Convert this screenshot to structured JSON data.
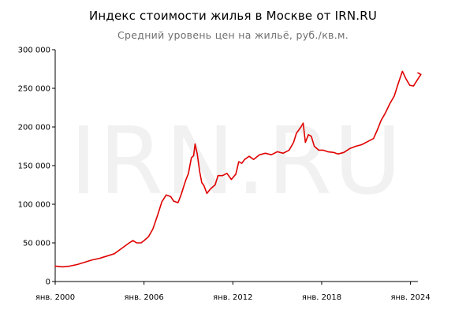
{
  "chart_data": {
    "type": "line",
    "title": "Индекс стоимости жилья в Москве от IRN.RU",
    "subtitle": "Средний уровень цен на жильё, руб./кв.м.",
    "watermark": "IRN.RU",
    "xlabel": "",
    "ylabel": "",
    "xlim": [
      2000.0,
      2024.5
    ],
    "ylim": [
      0,
      300000
    ],
    "x_ticks": [
      {
        "x": 2000,
        "label": "янв. 2000"
      },
      {
        "x": 2006,
        "label": "янв. 2006"
      },
      {
        "x": 2012,
        "label": "янв. 2012"
      },
      {
        "x": 2018,
        "label": "янв. 2018"
      },
      {
        "x": 2024,
        "label": "янв. 2024"
      }
    ],
    "y_ticks": [
      {
        "y": 0,
        "label": "0"
      },
      {
        "y": 50000,
        "label": "50 000"
      },
      {
        "y": 100000,
        "label": "100 000"
      },
      {
        "y": 150000,
        "label": "150 000"
      },
      {
        "y": 200000,
        "label": "200 000"
      },
      {
        "y": 250000,
        "label": "250 000"
      },
      {
        "y": 300000,
        "label": "300 000"
      }
    ],
    "grid": false,
    "line_color": "#e00000",
    "series": [
      {
        "points": [
          [
            2000.0,
            20000
          ],
          [
            2000.5,
            19000
          ],
          [
            2001.0,
            20000
          ],
          [
            2001.5,
            22000
          ],
          [
            2002.0,
            25000
          ],
          [
            2002.5,
            28000
          ],
          [
            2003.0,
            30000
          ],
          [
            2003.5,
            33000
          ],
          [
            2004.0,
            36000
          ],
          [
            2004.5,
            43000
          ],
          [
            2005.0,
            50000
          ],
          [
            2005.25,
            53000
          ],
          [
            2005.5,
            50000
          ],
          [
            2005.8,
            50000
          ],
          [
            2006.0,
            53000
          ],
          [
            2006.3,
            58000
          ],
          [
            2006.6,
            68000
          ],
          [
            2006.9,
            85000
          ],
          [
            2007.2,
            103000
          ],
          [
            2007.5,
            112000
          ],
          [
            2007.8,
            110000
          ],
          [
            2008.0,
            104000
          ],
          [
            2008.3,
            102000
          ],
          [
            2008.5,
            112000
          ],
          [
            2008.8,
            130000
          ],
          [
            2009.0,
            140000
          ],
          [
            2009.2,
            160000
          ],
          [
            2009.35,
            163000
          ],
          [
            2009.45,
            178000
          ],
          [
            2009.6,
            165000
          ],
          [
            2009.75,
            143000
          ],
          [
            2009.9,
            128000
          ],
          [
            2010.05,
            124000
          ],
          [
            2010.25,
            114000
          ],
          [
            2010.5,
            120000
          ],
          [
            2010.8,
            125000
          ],
          [
            2011.0,
            137000
          ],
          [
            2011.3,
            137000
          ],
          [
            2011.6,
            140000
          ],
          [
            2011.9,
            132000
          ],
          [
            2012.2,
            139000
          ],
          [
            2012.4,
            155000
          ],
          [
            2012.6,
            153000
          ],
          [
            2012.8,
            158000
          ],
          [
            2013.1,
            162000
          ],
          [
            2013.4,
            158000
          ],
          [
            2013.8,
            164000
          ],
          [
            2014.2,
            166000
          ],
          [
            2014.6,
            164000
          ],
          [
            2015.0,
            168000
          ],
          [
            2015.4,
            166000
          ],
          [
            2015.8,
            170000
          ],
          [
            2016.1,
            180000
          ],
          [
            2016.3,
            192000
          ],
          [
            2016.45,
            196000
          ],
          [
            2016.6,
            200000
          ],
          [
            2016.75,
            205000
          ],
          [
            2016.9,
            180000
          ],
          [
            2017.1,
            190000
          ],
          [
            2017.3,
            188000
          ],
          [
            2017.5,
            175000
          ],
          [
            2017.8,
            170000
          ],
          [
            2018.1,
            170000
          ],
          [
            2018.4,
            168000
          ],
          [
            2018.8,
            167000
          ],
          [
            2019.1,
            165000
          ],
          [
            2019.5,
            167000
          ],
          [
            2019.9,
            172000
          ],
          [
            2020.3,
            175000
          ],
          [
            2020.7,
            177000
          ],
          [
            2021.1,
            181000
          ],
          [
            2021.5,
            185000
          ],
          [
            2021.8,
            198000
          ],
          [
            2022.0,
            208000
          ],
          [
            2022.3,
            218000
          ],
          [
            2022.6,
            230000
          ],
          [
            2022.9,
            240000
          ],
          [
            2023.2,
            258000
          ],
          [
            2023.45,
            272000
          ],
          [
            2023.7,
            262000
          ],
          [
            2023.95,
            254000
          ],
          [
            2024.2,
            253000
          ],
          [
            2024.5,
            262000
          ],
          [
            2024.7,
            268000
          ],
          [
            2024.5,
            270000
          ]
        ]
      }
    ]
  }
}
